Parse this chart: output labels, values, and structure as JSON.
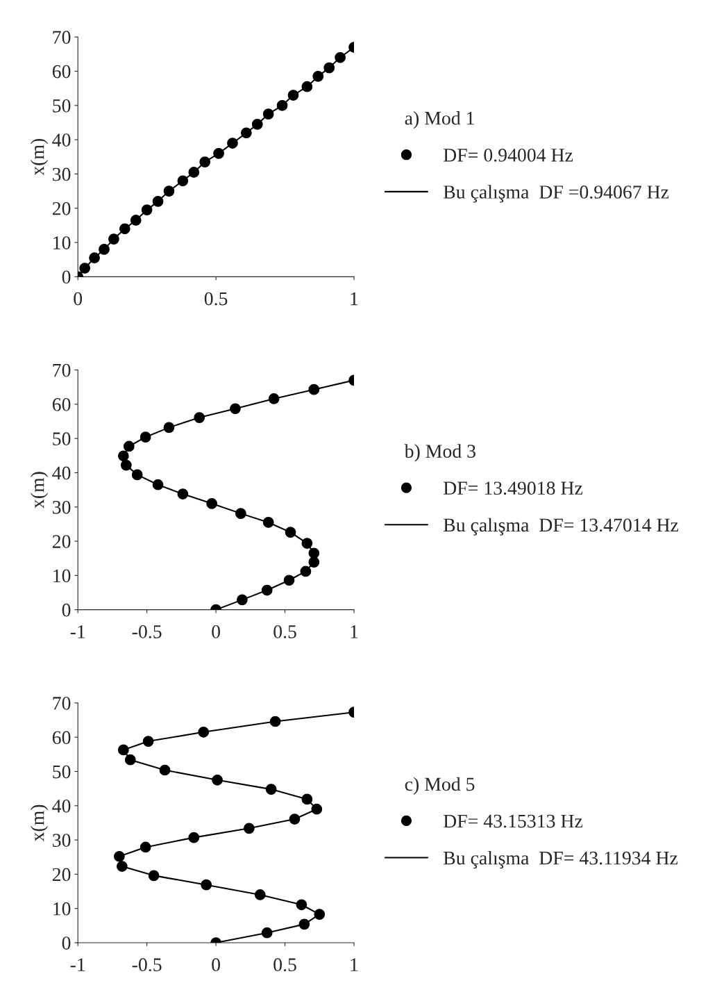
{
  "chart_data": [
    {
      "type": "line",
      "ylabel": "x(m)",
      "legend_title": "a) Mod 1",
      "legend": "right",
      "grid": false,
      "xlim": [
        0,
        1
      ],
      "xticks": [
        0,
        0.5,
        1
      ],
      "ylim": [
        0,
        70
      ],
      "yticks": [
        0,
        10,
        20,
        30,
        40,
        50,
        60,
        70
      ],
      "series": [
        {
          "name": "DF= 0.94004 Hz",
          "type": "scatter",
          "marker": "circle",
          "color": "#000000",
          "x": [
            0,
            0.025,
            0.06,
            0.095,
            0.13,
            0.17,
            0.21,
            0.25,
            0.29,
            0.33,
            0.38,
            0.42,
            0.46,
            0.51,
            0.56,
            0.61,
            0.65,
            0.69,
            0.74,
            0.78,
            0.83,
            0.87,
            0.91,
            0.95,
            1
          ],
          "values": [
            0,
            2.5,
            5.5,
            8,
            11,
            14,
            16.5,
            19.5,
            22,
            25,
            28,
            30.5,
            33.5,
            36,
            39,
            42,
            44.5,
            47.5,
            50,
            53,
            55.5,
            58.5,
            61,
            64,
            67
          ]
        },
        {
          "name": "Bu çalışma  DF =0.94067 Hz",
          "color": "#000000",
          "x": [
            0,
            0.025,
            0.06,
            0.095,
            0.13,
            0.17,
            0.21,
            0.25,
            0.29,
            0.33,
            0.38,
            0.42,
            0.46,
            0.51,
            0.56,
            0.61,
            0.65,
            0.69,
            0.74,
            0.78,
            0.83,
            0.87,
            0.91,
            0.95,
            1
          ],
          "values": [
            0,
            2.5,
            5.5,
            8,
            11,
            14,
            16.5,
            19.5,
            22,
            25,
            28,
            30.5,
            33.5,
            36,
            39,
            42,
            44.5,
            47.5,
            50,
            53,
            55.5,
            58.5,
            61,
            64,
            67
          ]
        }
      ]
    },
    {
      "type": "line",
      "ylabel": "x(m)",
      "legend_title": "b) Mod 3",
      "legend": "right",
      "grid": false,
      "xlim": [
        -1,
        1
      ],
      "xticks": [
        -1,
        -0.5,
        0,
        0.5,
        1
      ],
      "ylim": [
        0,
        70
      ],
      "yticks": [
        0,
        10,
        20,
        30,
        40,
        50,
        60,
        70
      ],
      "series": [
        {
          "name": "DF= 13.49018 Hz",
          "type": "scatter",
          "marker": "circle",
          "color": "#000000",
          "x": [
            0,
            0.19,
            0.37,
            0.53,
            0.65,
            0.71,
            0.71,
            0.66,
            0.54,
            0.38,
            0.18,
            -0.03,
            -0.24,
            -0.42,
            -0.57,
            -0.65,
            -0.67,
            -0.63,
            -0.51,
            -0.34,
            -0.12,
            0.14,
            0.42,
            0.71,
            1
          ],
          "values": [
            0,
            2.9,
            5.7,
            8.6,
            11.2,
            13.9,
            16.5,
            19.4,
            22.6,
            25.5,
            28.1,
            31,
            33.8,
            36.5,
            39.4,
            42.2,
            44.9,
            47.7,
            50.4,
            53.2,
            56.1,
            58.7,
            61.6,
            64.3,
            67
          ]
        },
        {
          "name": "Bu çalışma  DF= 13.47014 Hz",
          "color": "#000000",
          "x": [
            0,
            0.19,
            0.37,
            0.53,
            0.65,
            0.71,
            0.71,
            0.66,
            0.54,
            0.38,
            0.18,
            -0.03,
            -0.24,
            -0.42,
            -0.57,
            -0.65,
            -0.67,
            -0.63,
            -0.51,
            -0.34,
            -0.12,
            0.14,
            0.42,
            0.71,
            1
          ],
          "values": [
            0,
            2.9,
            5.7,
            8.6,
            11.2,
            13.9,
            16.5,
            19.4,
            22.6,
            25.5,
            28.1,
            31,
            33.8,
            36.5,
            39.4,
            42.2,
            44.9,
            47.7,
            50.4,
            53.2,
            56.1,
            58.7,
            61.6,
            64.3,
            67
          ]
        }
      ]
    },
    {
      "type": "line",
      "ylabel": "x(m)",
      "legend_title": "c) Mod 5",
      "legend": "right",
      "grid": false,
      "xlim": [
        -1,
        1
      ],
      "xticks": [
        -1,
        -0.5,
        0,
        0.5,
        1
      ],
      "ylim": [
        0,
        70
      ],
      "yticks": [
        0,
        10,
        20,
        30,
        40,
        50,
        60,
        70
      ],
      "series": [
        {
          "name": "DF= 43.15313 Hz",
          "type": "scatter",
          "marker": "circle",
          "color": "#000000",
          "x": [
            0,
            0.37,
            0.64,
            0.75,
            0.62,
            0.32,
            -0.07,
            -0.45,
            -0.68,
            -0.7,
            -0.51,
            -0.16,
            0.24,
            0.57,
            0.73,
            0.66,
            0.4,
            0.01,
            -0.37,
            -0.62,
            -0.67,
            -0.49,
            -0.09,
            0.43,
            1
          ],
          "values": [
            0,
            2.9,
            5.4,
            8.3,
            11.1,
            14,
            16.9,
            19.6,
            22.3,
            25.2,
            27.9,
            30.7,
            33.4,
            36.1,
            39,
            41.9,
            44.8,
            47.5,
            50.4,
            53.4,
            56.3,
            58.8,
            61.5,
            64.6,
            67.3
          ]
        },
        {
          "name": "Bu çalışma  DF= 43.11934 Hz",
          "color": "#000000",
          "x": [
            0,
            0.37,
            0.64,
            0.75,
            0.62,
            0.32,
            -0.07,
            -0.45,
            -0.68,
            -0.7,
            -0.51,
            -0.16,
            0.24,
            0.57,
            0.73,
            0.66,
            0.4,
            0.01,
            -0.37,
            -0.62,
            -0.67,
            -0.49,
            -0.09,
            0.43,
            1
          ],
          "values": [
            0,
            2.9,
            5.4,
            8.3,
            11.1,
            14,
            16.9,
            19.6,
            22.3,
            25.2,
            27.9,
            30.7,
            33.4,
            36.1,
            39,
            41.9,
            44.8,
            47.5,
            50.4,
            53.4,
            56.3,
            58.8,
            61.5,
            64.6,
            67.3
          ]
        }
      ]
    }
  ]
}
